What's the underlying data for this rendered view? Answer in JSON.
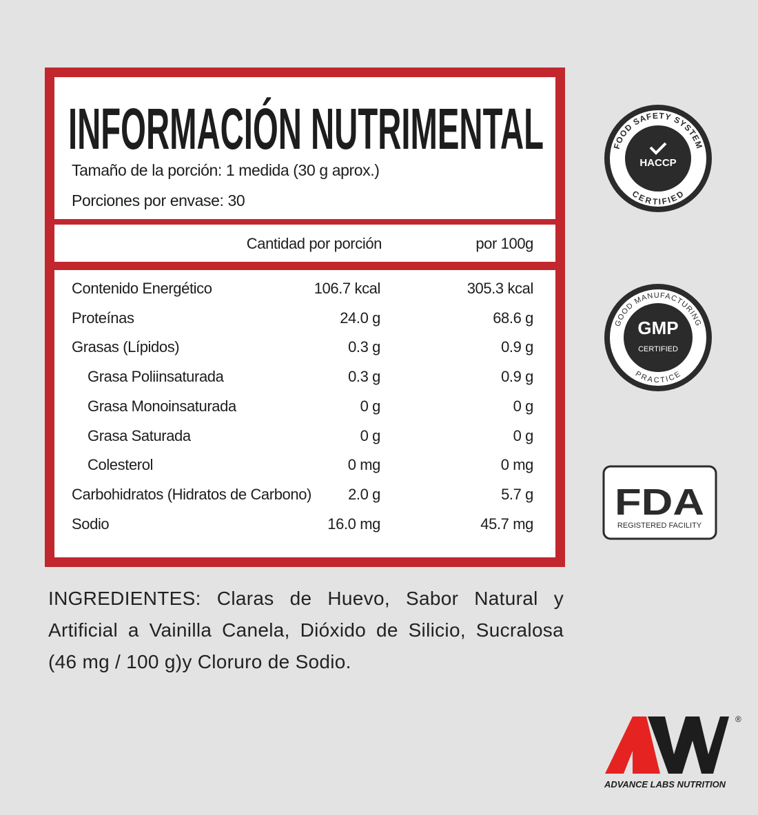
{
  "title": "INFORMACIÓN NUTRIMENTAL",
  "serving_size": "Tamaño de la porción: 1 medida (30 g aprox.)",
  "servings_per_container": "Porciones por envase: 30",
  "table": {
    "header": [
      "Cantidad por porción",
      "por 100g"
    ],
    "rows": [
      {
        "name": "Contenido Energético",
        "per_serving": "106.7 kcal",
        "per_100g": "305.3 kcal",
        "indent": false
      },
      {
        "name": "Proteínas",
        "per_serving": "24.0 g",
        "per_100g": "68.6 g",
        "indent": false
      },
      {
        "name": "Grasas (Lípidos)",
        "per_serving": "0.3 g",
        "per_100g": "0.9 g",
        "indent": false
      },
      {
        "name": "Grasa Poliinsaturada",
        "per_serving": "0.3 g",
        "per_100g": "0.9 g",
        "indent": true
      },
      {
        "name": "Grasa Monoinsaturada",
        "per_serving": "0 g",
        "per_100g": "0 g",
        "indent": true
      },
      {
        "name": "Grasa Saturada",
        "per_serving": "0 g",
        "per_100g": "0 g",
        "indent": true
      },
      {
        "name": "Colesterol",
        "per_serving": "0 mg",
        "per_100g": "0 mg",
        "indent": true
      },
      {
        "name": "Carbohidratos (Hidratos de Carbono)",
        "per_serving": "2.0 g",
        "per_100g": "5.7 g",
        "indent": false
      },
      {
        "name": "Sodio",
        "per_serving": "16.0 mg",
        "per_100g": "45.7 mg",
        "indent": false
      }
    ]
  },
  "ingredients": {
    "label": "INGREDIENTES:",
    "text": "Claras de Huevo, Sabor Natural y Artificial a Vainilla Canela, Dióxido de Silicio, Sucralosa (46 mg / 100 g)y Cloruro de Sodio."
  },
  "badges": {
    "haccp": {
      "top": "FOOD SAFETY SYSTEM",
      "center": "HACCP",
      "bottom": "CERTIFIED"
    },
    "gmp": {
      "top": "GOOD MANUFACTURING",
      "center": "GMP",
      "sub": "CERTIFIED",
      "bottom": "PRACTICE"
    },
    "fda": {
      "center": "FDA",
      "bottom": "REGISTERED FACILITY"
    }
  },
  "brand": {
    "name": "ADVANCE LABS NUTRITION",
    "mark": "®"
  }
}
